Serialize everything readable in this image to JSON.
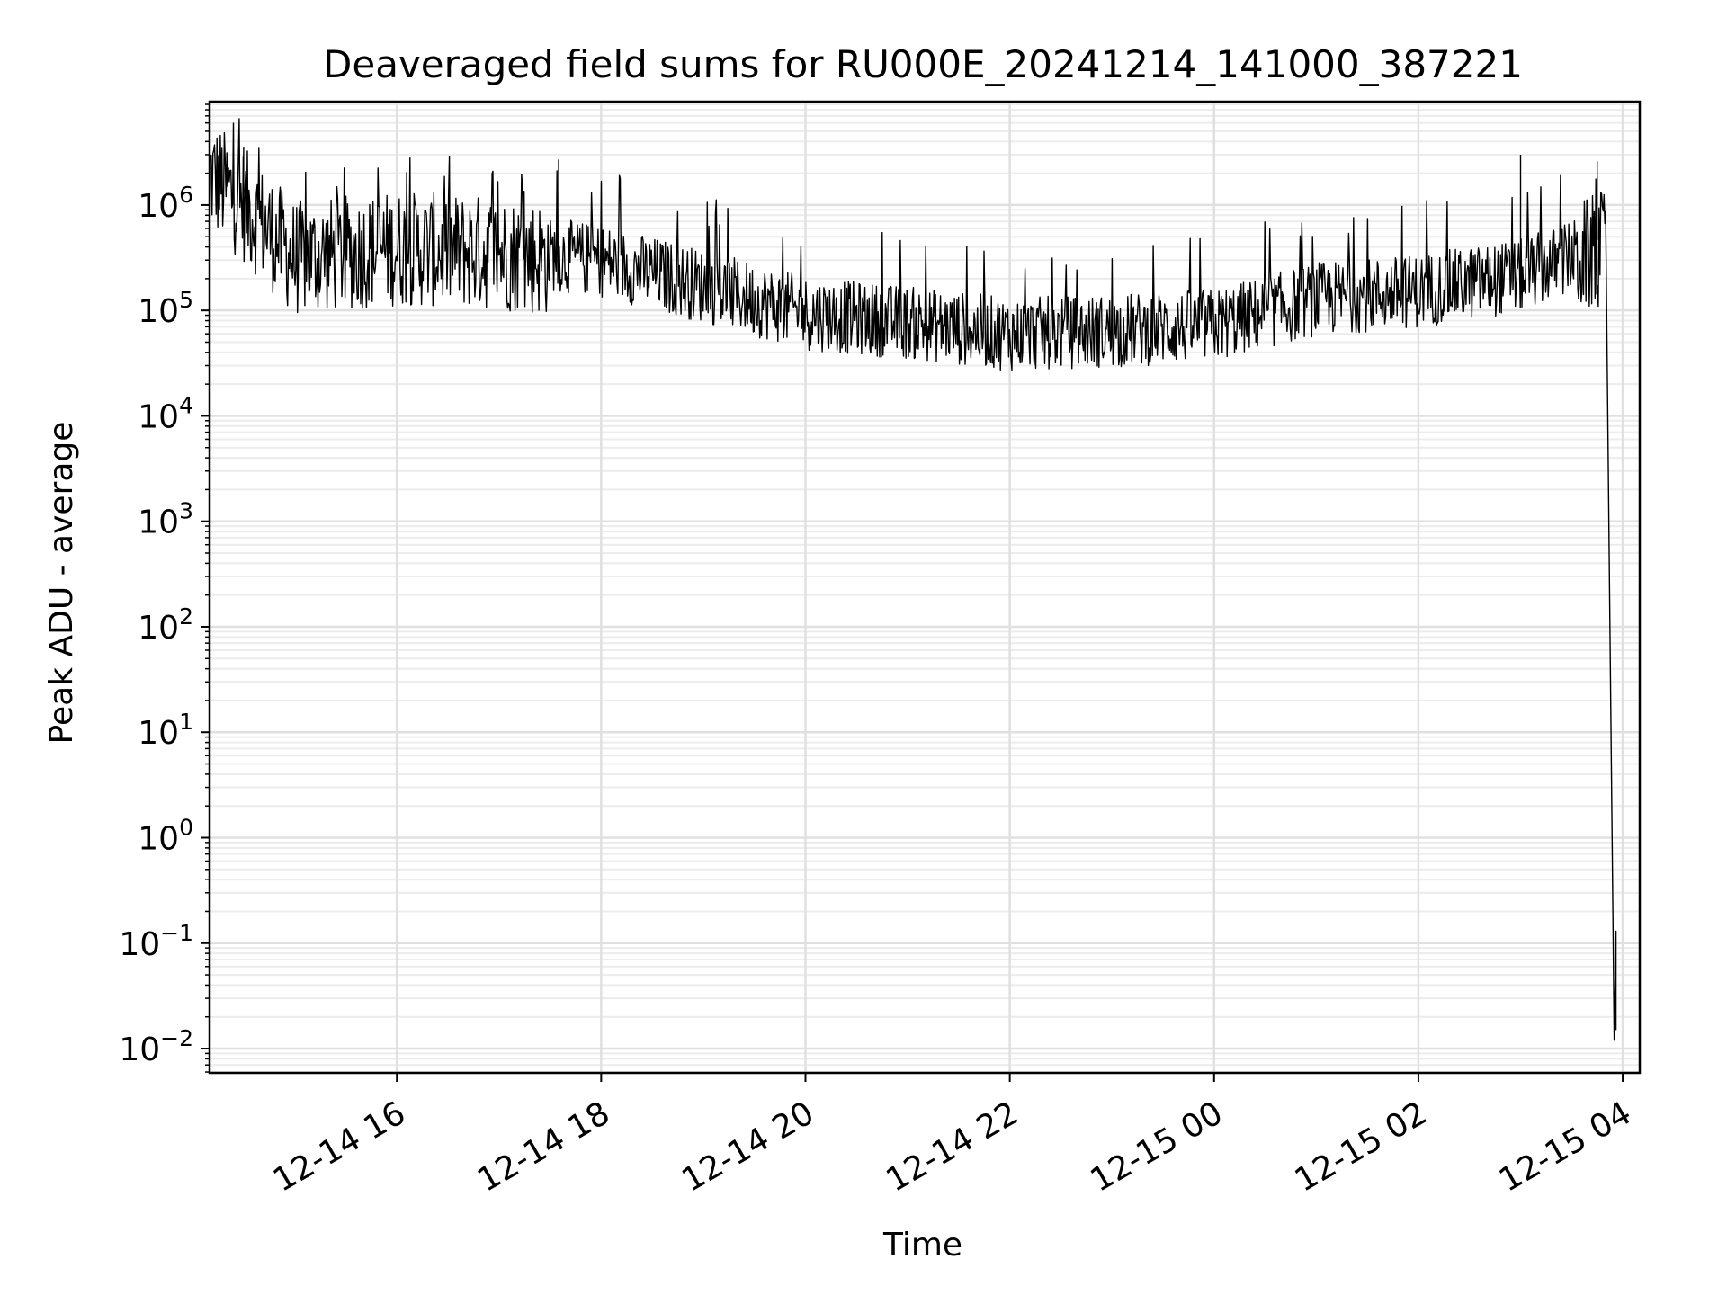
{
  "chart_data": {
    "type": "line",
    "title": "Deaveraged field sums for RU000E_20241214_141000_387221",
    "xlabel": "Time",
    "ylabel": "Peak ADU - average",
    "yscale": "log",
    "ylim_log10": [
      -2.23,
      6.98
    ],
    "xlim": [
      "2024-12-14 14:10",
      "2024-12-15 04:10"
    ],
    "grid": "major and minor, both axes",
    "x_ticks": [
      {
        "value": "2024-12-14 16:00",
        "label": "12-14 16"
      },
      {
        "value": "2024-12-14 18:00",
        "label": "12-14 18"
      },
      {
        "value": "2024-12-14 20:00",
        "label": "12-14 20"
      },
      {
        "value": "2024-12-14 22:00",
        "label": "12-14 22"
      },
      {
        "value": "2024-12-15 00:00",
        "label": "12-15 00"
      },
      {
        "value": "2024-12-15 02:00",
        "label": "12-15 02"
      },
      {
        "value": "2024-12-15 04:00",
        "label": "12-15 04"
      }
    ],
    "y_ticks": [
      {
        "base": "10",
        "exp": "6"
      },
      {
        "base": "10",
        "exp": "5"
      },
      {
        "base": "10",
        "exp": "4"
      },
      {
        "base": "10",
        "exp": "3"
      },
      {
        "base": "10",
        "exp": "2"
      },
      {
        "base": "10",
        "exp": "1"
      },
      {
        "base": "10",
        "exp": "0"
      },
      {
        "base": "10",
        "exp": "−1"
      },
      {
        "base": "10",
        "exp": "−2"
      }
    ],
    "series": [
      {
        "color": "#000000",
        "envelope_note_points": [
          {
            "t": "2024-12-14 14:10",
            "y": 2500000
          },
          {
            "t": "2024-12-14 14:30",
            "y": 1300000
          },
          {
            "t": "2024-12-14 15:00",
            "y": 400000
          },
          {
            "t": "2024-12-14 16:00",
            "y": 500000
          },
          {
            "t": "2024-12-14 17:00",
            "y": 450000
          },
          {
            "t": "2024-12-14 18:00",
            "y": 350000
          },
          {
            "t": "2024-12-14 19:00",
            "y": 200000
          },
          {
            "t": "2024-12-14 20:00",
            "y": 110000
          },
          {
            "t": "2024-12-14 21:00",
            "y": 90000
          },
          {
            "t": "2024-12-14 22:00",
            "y": 70000
          },
          {
            "t": "2024-12-14 23:00",
            "y": 75000
          },
          {
            "t": "2024-12-15 00:00",
            "y": 85000
          },
          {
            "t": "2024-12-15 01:00",
            "y": 150000
          },
          {
            "t": "2024-12-15 02:00",
            "y": 180000
          },
          {
            "t": "2024-12-15 03:00",
            "y": 250000
          },
          {
            "t": "2024-12-15 03:50",
            "y": 500000
          },
          {
            "t": "2024-12-15 03:55",
            "y": 0.012
          }
        ],
        "spikes": [
          {
            "t": "2024-12-14 14:30",
            "y": 3500000
          },
          {
            "t": "2024-12-14 17:35",
            "y": 2700000
          },
          {
            "t": "2024-12-15 03:00",
            "y": 3000000
          },
          {
            "t": "2024-12-15 03:45",
            "y": 2600000
          }
        ]
      }
    ]
  }
}
